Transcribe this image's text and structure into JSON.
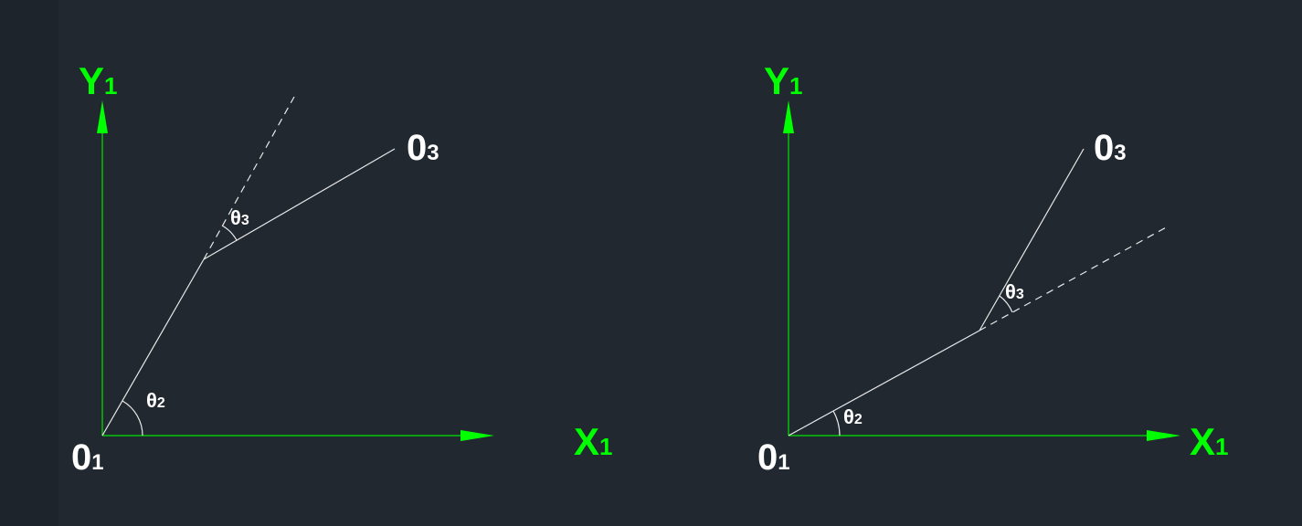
{
  "colors": {
    "background": "#212830",
    "axis": "#00e400",
    "link": "#e8e8e8",
    "label_white": "#ffffff",
    "label_green": "#00ff00"
  },
  "diagrams": [
    {
      "y_axis_label": "Y",
      "y_axis_sub": "1",
      "x_axis_label": "X",
      "x_axis_sub": "1",
      "origin_label": "0",
      "origin_sub": "1",
      "end_label": "0",
      "end_sub": "3",
      "theta2_label": "θ",
      "theta2_sub": "2",
      "theta3_label": "θ",
      "theta3_sub": "3"
    },
    {
      "y_axis_label": "Y",
      "y_axis_sub": "1",
      "x_axis_label": "X",
      "x_axis_sub": "1",
      "origin_label": "0",
      "origin_sub": "1",
      "end_label": "0",
      "end_sub": "3",
      "theta2_label": "θ",
      "theta2_sub": "2",
      "theta3_label": "θ",
      "theta3_sub": "3"
    }
  ]
}
